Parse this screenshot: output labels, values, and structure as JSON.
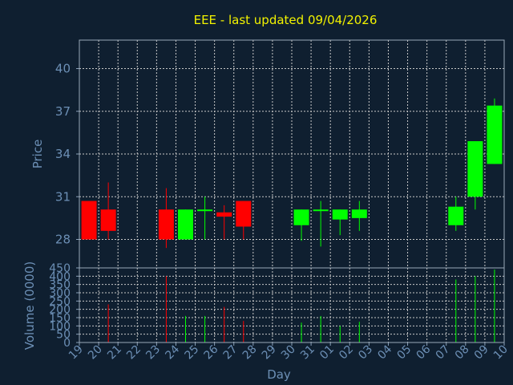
{
  "chart_data": [
    {
      "type": "candlestick",
      "title": "EEE - last updated 09/04/2026",
      "xlabel": "Day",
      "ylabel": "Price",
      "ylim": [
        26,
        42
      ],
      "yticks": [
        28,
        31,
        34,
        37,
        40
      ],
      "grid": true,
      "x_tick_labels": [
        "19",
        "20",
        "21",
        "22",
        "23",
        "24",
        "25",
        "26",
        "27",
        "28",
        "29",
        "30",
        "31",
        "01",
        "02",
        "03",
        "04",
        "05",
        "06",
        "07",
        "08",
        "09",
        "10"
      ],
      "up_color": "#00ff00",
      "down_color": "#ff0000",
      "candles": [
        {
          "day": "19",
          "open": 30.7,
          "high": 30.7,
          "low": 28.0,
          "close": 28.0
        },
        {
          "day": "20",
          "open": 30.1,
          "high": 32.0,
          "low": 28.0,
          "close": 28.6
        },
        {
          "day": "23",
          "open": 30.1,
          "high": 31.6,
          "low": 27.4,
          "close": 28.0
        },
        {
          "day": "24",
          "open": 28.0,
          "high": 30.1,
          "low": 28.0,
          "close": 30.1
        },
        {
          "day": "25",
          "open": 30.0,
          "high": 31.0,
          "low": 28.0,
          "close": 30.1
        },
        {
          "day": "26",
          "open": 29.9,
          "high": 30.4,
          "low": 28.0,
          "close": 29.6
        },
        {
          "day": "27",
          "open": 30.7,
          "high": 30.7,
          "low": 28.0,
          "close": 28.9
        },
        {
          "day": "30",
          "open": 29.0,
          "high": 30.1,
          "low": 27.9,
          "close": 30.1
        },
        {
          "day": "31",
          "open": 30.0,
          "high": 30.7,
          "low": 27.5,
          "close": 30.1
        },
        {
          "day": "01",
          "open": 29.4,
          "high": 30.1,
          "low": 28.3,
          "close": 30.1
        },
        {
          "day": "02",
          "open": 29.5,
          "high": 30.7,
          "low": 28.6,
          "close": 30.1
        },
        {
          "day": "07",
          "open": 29.0,
          "high": 31.0,
          "low": 28.6,
          "close": 30.3
        },
        {
          "day": "08",
          "open": 31.0,
          "high": 34.9,
          "low": 30.1,
          "close": 34.9
        },
        {
          "day": "09",
          "open": 33.3,
          "high": 37.9,
          "low": 33.3,
          "close": 37.4
        }
      ]
    },
    {
      "type": "bar",
      "ylabel": "Volume (0000)",
      "ylim": [
        0,
        450
      ],
      "yticks": [
        0,
        50,
        100,
        150,
        200,
        250,
        300,
        350,
        400,
        450
      ],
      "grid": true,
      "bars": [
        {
          "day": "19",
          "value": 0,
          "color": "#ff0000"
        },
        {
          "day": "20",
          "value": 230,
          "color": "#ff0000"
        },
        {
          "day": "23",
          "value": 400,
          "color": "#ff0000"
        },
        {
          "day": "24",
          "value": 160,
          "color": "#00ff00"
        },
        {
          "day": "25",
          "value": 160,
          "color": "#00ff00"
        },
        {
          "day": "26",
          "value": 215,
          "color": "#ff0000"
        },
        {
          "day": "27",
          "value": 130,
          "color": "#ff0000"
        },
        {
          "day": "30",
          "value": 120,
          "color": "#00ff00"
        },
        {
          "day": "31",
          "value": 160,
          "color": "#00ff00"
        },
        {
          "day": "01",
          "value": 100,
          "color": "#00ff00"
        },
        {
          "day": "02",
          "value": 125,
          "color": "#00ff00"
        },
        {
          "day": "07",
          "value": 380,
          "color": "#00ff00"
        },
        {
          "day": "08",
          "value": 400,
          "color": "#00ff00"
        },
        {
          "day": "09",
          "value": 440,
          "color": "#00ff00"
        }
      ]
    }
  ]
}
